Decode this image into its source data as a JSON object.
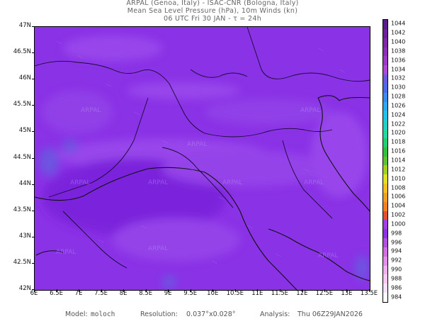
{
  "header": {
    "line1": "ARPAL (Genoa, Italy)  -  ISAC-CNR (Bologna, Italy)",
    "line2": "Mean Sea Level Pressure (hPa), 10m Winds (kn)",
    "line3": "06 UTC Fri 30 JAN  -  τ = 24h"
  },
  "map": {
    "watermark": "ARPAL",
    "field_color": "#8a32e6",
    "lat_labels": [
      "47N",
      "46.5N",
      "46N",
      "45.5N",
      "45N",
      "44.5N",
      "44N",
      "43.5N",
      "43N",
      "42.5N",
      "42N"
    ],
    "lon_labels": [
      "6E",
      "6.5E",
      "7E",
      "7.5E",
      "8E",
      "8.5E",
      "9E",
      "9.5E",
      "10E",
      "10.5E",
      "11E",
      "11.5E",
      "12E",
      "12.5E",
      "13E",
      "13.5E"
    ]
  },
  "colorbar": {
    "labels": [
      "1044",
      "1042",
      "1040",
      "1038",
      "1036",
      "1034",
      "1032",
      "1030",
      "1028",
      "1026",
      "1024",
      "1022",
      "1020",
      "1018",
      "1016",
      "1014",
      "1012",
      "1010",
      "1008",
      "1006",
      "1004",
      "1002",
      "1000",
      "998",
      "996",
      "994",
      "992",
      "990",
      "988",
      "986",
      "984"
    ],
    "colors": [
      "#5a1a8a",
      "#6a2098",
      "#7a28a8",
      "#8a30b8",
      "#9a38c8",
      "#aa48d8",
      "#6a5ae0",
      "#4a6ae8",
      "#3a8af0",
      "#2aa8f0",
      "#20c0e8",
      "#20d0c8",
      "#20d8a0",
      "#20d070",
      "#30c040",
      "#60c030",
      "#a0d020",
      "#e0e020",
      "#f0c020",
      "#f0a020",
      "#f08020",
      "#e05030",
      "#a040e0",
      "#8a32e6",
      "#b050e0",
      "#d070e0",
      "#e090e8",
      "#f0b0f0",
      "#f8c8f0",
      "#f8e0f8",
      "#ffffff"
    ]
  },
  "footer": {
    "model_label": "Model:",
    "model_value": "moloch",
    "resolution_label": "Resolution:",
    "resolution_value": "0.037°x0.028°",
    "analysis_label": "Analysis:",
    "analysis_value": "Thu 06Z29JAN2026"
  }
}
